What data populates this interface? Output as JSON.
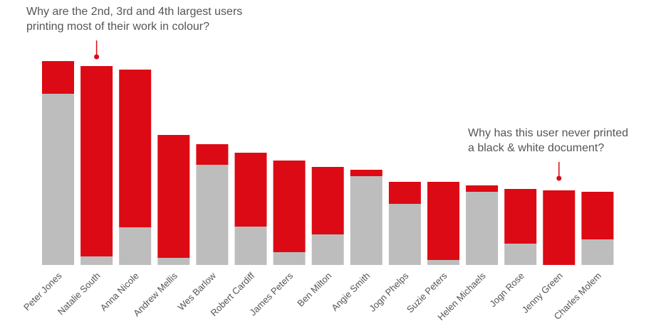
{
  "colors": {
    "bw": "#bdbdbd",
    "colour": "#dc0a14",
    "text": "#555555"
  },
  "annotations": [
    {
      "lines": [
        "Why are the 2nd, 3rd and 4th largest users",
        "printing most of their work in colour?"
      ],
      "points_to": "Natalie South"
    },
    {
      "lines": [
        "Why has this user never printed",
        "a black & white document?"
      ],
      "points_to": "Jenny Green"
    }
  ],
  "chart_data": {
    "type": "bar",
    "stacked": true,
    "title": "",
    "xlabel": "",
    "ylabel": "",
    "ylim": [
      0,
      290
    ],
    "categories": [
      "Peter Jones",
      "Natalie South",
      "Anna Nicole",
      "Andrew Mellis",
      "Wes Barlow",
      "Robert Cardiff",
      "James Peters",
      "Ben Milton",
      "Angie Smith",
      "Jogn Phelps",
      "Suzie Peters",
      "Helen Michaels",
      "Jogn Rose",
      "Jenny Green",
      "Charles Molem"
    ],
    "series": [
      {
        "values": [
          241,
          12,
          53,
          10,
          141,
          54,
          18,
          43,
          125,
          86,
          7,
          103,
          30,
          0,
          36
        ]
      },
      {
        "values": [
          46,
          268,
          222,
          173,
          29,
          104,
          129,
          95,
          9,
          31,
          110,
          9,
          77,
          105,
          67
        ]
      }
    ]
  }
}
